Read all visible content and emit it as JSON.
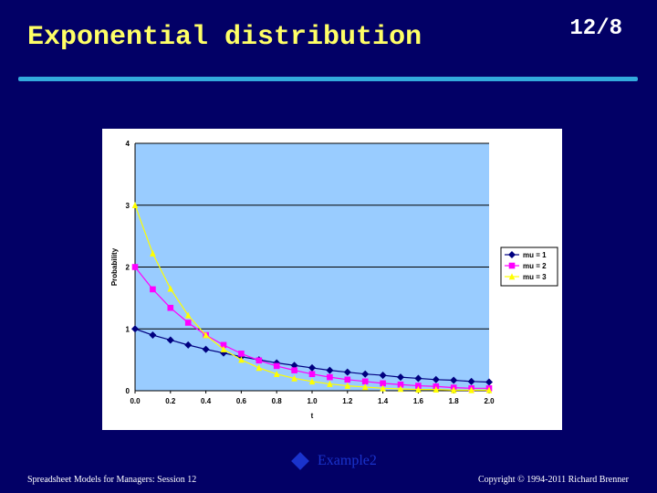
{
  "slide": {
    "title": "Exponential distribution",
    "number": "12/8",
    "link_label": "Example2",
    "footer_left": "Spreadsheet Models for Managers:   Session  12",
    "footer_right": "Copyright © 1994-2011 Richard Brenner"
  },
  "colors": {
    "background": "#020066",
    "title": "#ffff66",
    "rule": "#33aadd",
    "plot_area": "#99ccff",
    "mu1": "#000080",
    "mu2": "#ff00ff",
    "mu3": "#ffff00"
  },
  "chart_data": {
    "type": "line",
    "title": "",
    "xlabel": "t",
    "ylabel": "Probability",
    "xlim": [
      0,
      2
    ],
    "ylim": [
      0,
      4
    ],
    "x_ticks": [
      "0.0",
      "0.2",
      "0.4",
      "0.6",
      "0.8",
      "1.0",
      "1.2",
      "1.4",
      "1.6",
      "1.8",
      "2.0"
    ],
    "y_ticks": [
      "0",
      "1",
      "2",
      "3",
      "4"
    ],
    "grid": "horizontal",
    "legend": "right",
    "x": [
      0.0,
      0.1,
      0.2,
      0.3,
      0.4,
      0.5,
      0.6,
      0.7,
      0.8,
      0.9,
      1.0,
      1.1,
      1.2,
      1.3,
      1.4,
      1.5,
      1.6,
      1.7,
      1.8,
      1.9,
      2.0
    ],
    "series": [
      {
        "name": "mu = 1",
        "marker": "diamond",
        "color": "#000080",
        "values": [
          1.0,
          0.9,
          0.82,
          0.74,
          0.67,
          0.61,
          0.55,
          0.5,
          0.45,
          0.41,
          0.37,
          0.33,
          0.3,
          0.27,
          0.25,
          0.22,
          0.2,
          0.18,
          0.17,
          0.15,
          0.14
        ]
      },
      {
        "name": "mu = 2",
        "marker": "square",
        "color": "#ff00ff",
        "values": [
          2.0,
          1.64,
          1.34,
          1.1,
          0.9,
          0.74,
          0.6,
          0.49,
          0.4,
          0.33,
          0.27,
          0.22,
          0.18,
          0.15,
          0.12,
          0.1,
          0.08,
          0.07,
          0.05,
          0.04,
          0.04
        ]
      },
      {
        "name": "mu = 3",
        "marker": "triangle",
        "color": "#ffff00",
        "values": [
          3.0,
          2.22,
          1.65,
          1.22,
          0.9,
          0.67,
          0.5,
          0.37,
          0.27,
          0.2,
          0.15,
          0.11,
          0.08,
          0.06,
          0.04,
          0.03,
          0.02,
          0.02,
          0.01,
          0.01,
          0.01
        ]
      }
    ]
  }
}
